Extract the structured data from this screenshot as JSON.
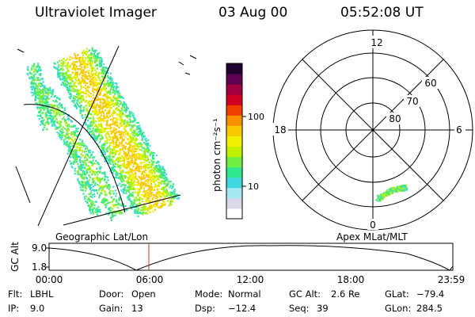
{
  "header": {
    "title": "Ultraviolet Imager",
    "date": "03 Aug 00",
    "time": "05:52:08 UT"
  },
  "colorbar": {
    "unit_label": "photon cm⁻²s⁻¹",
    "ticks": [
      "100",
      "10"
    ],
    "colors": [
      "#ffffff",
      "#d8d8e8",
      "#a8e8f0",
      "#40d8e0",
      "#30e890",
      "#70f040",
      "#c0f000",
      "#f0f000",
      "#f8c800",
      "#f89000",
      "#f04000",
      "#d00020",
      "#a00040",
      "#600050",
      "#200030"
    ]
  },
  "polar_plot": {
    "hour_labels": [
      "12",
      "18",
      "6",
      "0"
    ],
    "lat_labels": [
      "60",
      "70",
      "80"
    ],
    "caption": "Apex MLat/MLT"
  },
  "geo_plot": {
    "caption": "Geographic Lat/Lon"
  },
  "timeline": {
    "ylabel": "GC Alt",
    "ticks_y": [
      "9.0",
      "1.8"
    ],
    "ticks_x": [
      "00:00",
      "06:00",
      "12:00",
      "18:00",
      "23:59"
    ],
    "current_time_fraction": 0.247
  },
  "info": [
    [
      "Flt:",
      "LBHL",
      "Door:",
      "Open",
      "Mode:",
      "Normal",
      "GC Alt:",
      "2.6 Re",
      "GLat:",
      "−79.4"
    ],
    [
      "IP:",
      "9.0",
      "Gain:",
      "13",
      "Dsp:",
      "−12.4",
      "Seq:",
      "39",
      "GLon:",
      "284.5"
    ]
  ]
}
